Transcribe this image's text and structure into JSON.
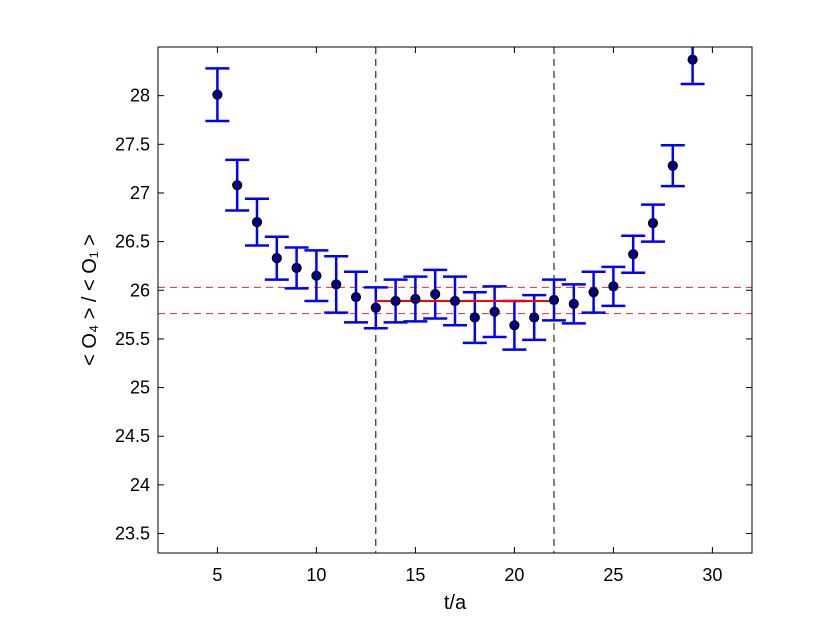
{
  "chart_data": {
    "type": "scatter",
    "title": "",
    "xlabel": "t/a",
    "ylabel": "< O₄ > / < O₁ >",
    "xlim": [
      2,
      32
    ],
    "ylim": [
      23.3,
      28.5
    ],
    "x_ticks": [
      5,
      10,
      15,
      20,
      25,
      30
    ],
    "y_ticks": [
      23.5,
      24,
      24.5,
      25,
      25.5,
      26,
      26.5,
      27,
      27.5,
      28
    ],
    "x_tick_labels": [
      "5",
      "10",
      "15",
      "20",
      "25",
      "30"
    ],
    "y_tick_labels": [
      "23.5",
      "24",
      "24.5",
      "25",
      "25.5",
      "26",
      "26.5",
      "27",
      "27.5",
      "28"
    ],
    "grid": false,
    "series": [
      {
        "type": "errorbar",
        "x": [
          5,
          6,
          7,
          8,
          9,
          10,
          11,
          12,
          13,
          14,
          15,
          16,
          17,
          18,
          19,
          20,
          21,
          22,
          23,
          24,
          25,
          26,
          27,
          28,
          29
        ],
        "y": [
          28.01,
          27.08,
          26.7,
          26.33,
          26.23,
          26.15,
          26.06,
          25.93,
          25.82,
          25.89,
          25.91,
          25.96,
          25.89,
          25.72,
          25.78,
          25.64,
          25.72,
          25.9,
          25.86,
          25.98,
          26.04,
          26.37,
          26.69,
          27.28,
          28.37
        ],
        "err": [
          0.27,
          0.26,
          0.24,
          0.22,
          0.21,
          0.26,
          0.29,
          0.26,
          0.21,
          0.22,
          0.23,
          0.25,
          0.25,
          0.26,
          0.26,
          0.25,
          0.23,
          0.21,
          0.2,
          0.21,
          0.2,
          0.19,
          0.19,
          0.21,
          0.25
        ],
        "marker_color": "#00008B",
        "errorbar_color": "#0000FF"
      }
    ],
    "fit_line": {
      "x_range": [
        13,
        22
      ],
      "y": 25.89,
      "color": "#FF0000"
    },
    "band_lines": {
      "y": [
        26.03,
        25.76
      ],
      "color": "#FF0000",
      "style": "dashed"
    },
    "vertical_lines": {
      "x": [
        13,
        22
      ],
      "color": "#000000",
      "style": "dashed"
    }
  }
}
